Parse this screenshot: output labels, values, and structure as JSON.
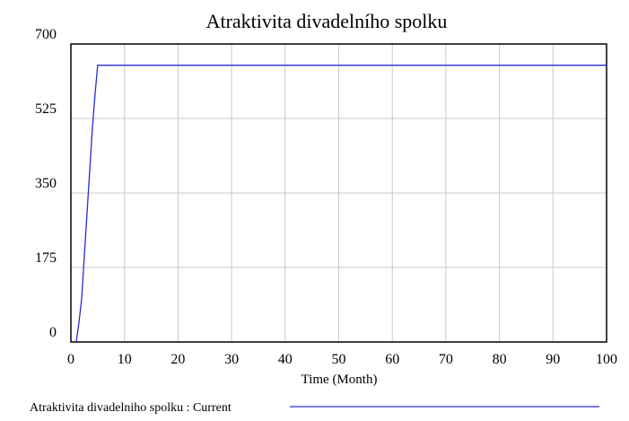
{
  "chart_data": {
    "type": "line",
    "title": "Atraktivita divadelního spolku",
    "xlabel": "Time (Month)",
    "ylabel": "",
    "xlim": [
      0,
      100
    ],
    "ylim": [
      0,
      700
    ],
    "x_ticks": [
      0,
      10,
      20,
      30,
      40,
      50,
      60,
      70,
      80,
      90,
      100
    ],
    "y_ticks": [
      0,
      175,
      350,
      525,
      700
    ],
    "grid": true,
    "legend_position": "bottom-left",
    "series": [
      {
        "name": "Atraktivita divadelniho spolku : Current",
        "color": "#2b2bd6",
        "x": [
          1,
          1.5,
          2,
          2.5,
          3,
          3.5,
          4,
          4.5,
          5,
          100
        ],
        "y": [
          0,
          45,
          100,
          200,
          300,
          400,
          500,
          580,
          650,
          650
        ]
      }
    ]
  }
}
